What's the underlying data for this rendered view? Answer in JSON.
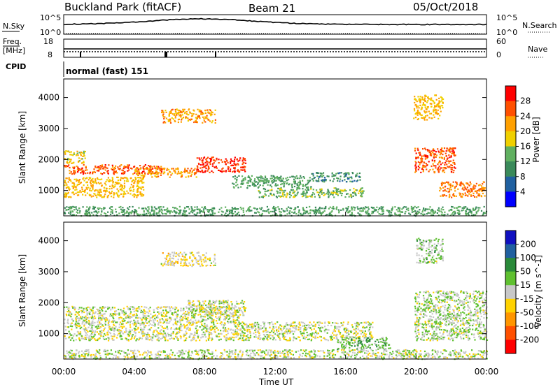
{
  "header": {
    "station": "Buckland Park (fitACF)",
    "beam": "Beam 21",
    "date": "05/Oct/2018"
  },
  "noise_panel": {
    "left_label": "N.Sky",
    "right_label": "N.Search",
    "left_ticks": [
      "10^5",
      "10^0"
    ],
    "right_ticks": [
      "10^5",
      "10^0"
    ]
  },
  "freq_panel": {
    "left_label": "Freq.",
    "left_unit": "[MHz]",
    "right_label": "Nave",
    "left_ticks": [
      "18",
      "8"
    ],
    "right_ticks": [
      "60",
      "0"
    ]
  },
  "cpid_panel": {
    "label": "CPID",
    "mode": "normal (fast) 151"
  },
  "power_panel": {
    "ylabel": "Slant Range [km]",
    "cbar_label": "Power [dB]",
    "cbar_ticks": [
      "4",
      "8",
      "12",
      "16",
      "20",
      "24",
      "28"
    ],
    "cbar_colors": [
      "#0000ff",
      "#2060a0",
      "#3a8a5a",
      "#60b060",
      "#f0d000",
      "#ffa000",
      "#ff5000",
      "#ff0000"
    ]
  },
  "velocity_panel": {
    "ylabel": "Slant Range [km]",
    "cbar_label": "Velocity [m s^-1]",
    "cbar_ticks": [
      "200",
      "100",
      "50",
      "15",
      "-15",
      "-50",
      "-100",
      "-200"
    ],
    "cbar_colors": [
      "#1010c0",
      "#2060a0",
      "#2a8a3a",
      "#5fc030",
      "#c8c8c8",
      "#ffd200",
      "#ff9600",
      "#ff5000",
      "#ff0000"
    ]
  },
  "xaxis": {
    "label": "Time UT",
    "ticks": [
      "00:00",
      "04:00",
      "08:00",
      "12:00",
      "16:00",
      "20:00",
      "00:00"
    ]
  },
  "chart_data": [
    {
      "type": "heatmap",
      "title": "Buckland Park (fitACF)",
      "xlabel": "Time UT",
      "ylabel": "Slant Range [km]",
      "value_label": "Power [dB]",
      "xlim": [
        0,
        24
      ],
      "ylim": [
        180,
        4600
      ],
      "clim": [
        0,
        32
      ],
      "regions": [
        {
          "t0": 0.0,
          "t1": 5.6,
          "r0": 1550,
          "r1": 1850,
          "value": 26
        },
        {
          "t0": 0.0,
          "t1": 4.5,
          "r0": 800,
          "r1": 1450,
          "value": 20
        },
        {
          "t0": 0.0,
          "t1": 1.2,
          "r0": 1900,
          "r1": 2300,
          "value": 18
        },
        {
          "t0": 4.0,
          "t1": 7.5,
          "r0": 1450,
          "r1": 1750,
          "value": 22
        },
        {
          "t0": 7.5,
          "t1": 10.3,
          "r0": 1600,
          "r1": 2100,
          "value": 28
        },
        {
          "t0": 5.5,
          "t1": 8.6,
          "r0": 3200,
          "r1": 3650,
          "value": 22
        },
        {
          "t0": 9.5,
          "t1": 14.0,
          "r0": 1100,
          "r1": 1500,
          "value": 12
        },
        {
          "t0": 11.0,
          "t1": 17.0,
          "r0": 800,
          "r1": 1100,
          "value": 14
        },
        {
          "t0": 14.0,
          "t1": 16.8,
          "r0": 1300,
          "r1": 1600,
          "value": 10
        },
        {
          "t0": 19.9,
          "t1": 22.2,
          "r0": 1600,
          "r1": 2400,
          "value": 26
        },
        {
          "t0": 21.3,
          "t1": 23.9,
          "r0": 800,
          "r1": 1300,
          "value": 24
        },
        {
          "t0": 19.8,
          "t1": 21.5,
          "r0": 3300,
          "r1": 4100,
          "value": 20
        },
        {
          "t0": 0.0,
          "t1": 24.0,
          "r0": 200,
          "r1": 500,
          "value": 12
        }
      ]
    },
    {
      "type": "heatmap",
      "title": "",
      "xlabel": "Time UT",
      "ylabel": "Slant Range [km]",
      "value_label": "Velocity [m s^-1]",
      "xlim": [
        0,
        24
      ],
      "ylim": [
        180,
        4600
      ],
      "clim": [
        -250,
        250
      ],
      "regions": [
        {
          "t0": 0.0,
          "t1": 10.0,
          "r0": 800,
          "r1": 1900,
          "value": 0
        },
        {
          "t0": 7.0,
          "t1": 10.3,
          "r0": 1600,
          "r1": 2100,
          "value": 0
        },
        {
          "t0": 5.5,
          "t1": 8.6,
          "r0": 3200,
          "r1": 3650,
          "value": -30
        },
        {
          "t0": 10.0,
          "t1": 17.5,
          "r0": 800,
          "r1": 1400,
          "value": 0
        },
        {
          "t0": 15.5,
          "t1": 18.5,
          "r0": 500,
          "r1": 900,
          "value": 60
        },
        {
          "t0": 19.9,
          "t1": 24.0,
          "r0": 800,
          "r1": 2400,
          "value": 20
        },
        {
          "t0": 20.0,
          "t1": 21.5,
          "r0": 3300,
          "r1": 4100,
          "value": 30
        },
        {
          "t0": 0.0,
          "t1": 24.0,
          "r0": 200,
          "r1": 500,
          "value": 10
        }
      ]
    }
  ]
}
